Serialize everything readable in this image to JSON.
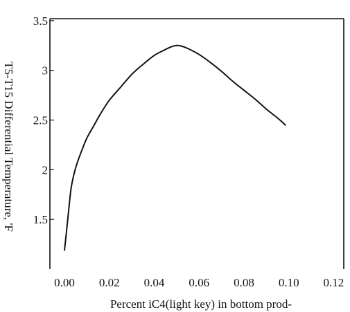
{
  "chart_data": {
    "type": "line",
    "title": "",
    "xlabel": "Percent iC4(light key) in bottom prod-",
    "ylabel": "T5-T15 Differential Temperature, 'F",
    "xlim": [
      -0.0065,
      0.1245
    ],
    "ylim": [
      1.0,
      3.52
    ],
    "x_ticks": [
      {
        "value": 0.0,
        "label": "0.00"
      },
      {
        "value": 0.02,
        "label": "0.02"
      },
      {
        "value": 0.04,
        "label": "0.04"
      },
      {
        "value": 0.06,
        "label": "0.06"
      },
      {
        "value": 0.08,
        "label": "0.08"
      },
      {
        "value": 0.1,
        "label": "0.10"
      },
      {
        "value": 0.12,
        "label": "0.12"
      }
    ],
    "y_ticks": [
      {
        "value": 1.5,
        "label": "1.5"
      },
      {
        "value": 2.0,
        "label": "2"
      },
      {
        "value": 2.5,
        "label": "2.5"
      },
      {
        "value": 3.0,
        "label": "3"
      },
      {
        "value": 3.5,
        "label": "3.5"
      }
    ],
    "grid": false,
    "series": [
      {
        "color": "#111111",
        "x": [
          0.0,
          0.001,
          0.002,
          0.003,
          0.0045,
          0.006,
          0.008,
          0.01,
          0.013,
          0.016,
          0.02,
          0.025,
          0.03,
          0.035,
          0.04,
          0.045,
          0.048,
          0.05,
          0.052,
          0.055,
          0.06,
          0.065,
          0.07,
          0.075,
          0.08,
          0.085,
          0.09,
          0.095,
          0.0985
        ],
        "y": [
          1.19,
          1.4,
          1.62,
          1.82,
          1.98,
          2.09,
          2.21,
          2.32,
          2.44,
          2.56,
          2.7,
          2.83,
          2.96,
          3.06,
          3.15,
          3.21,
          3.24,
          3.25,
          3.245,
          3.22,
          3.16,
          3.08,
          2.99,
          2.89,
          2.8,
          2.71,
          2.61,
          2.52,
          2.45
        ]
      }
    ]
  }
}
